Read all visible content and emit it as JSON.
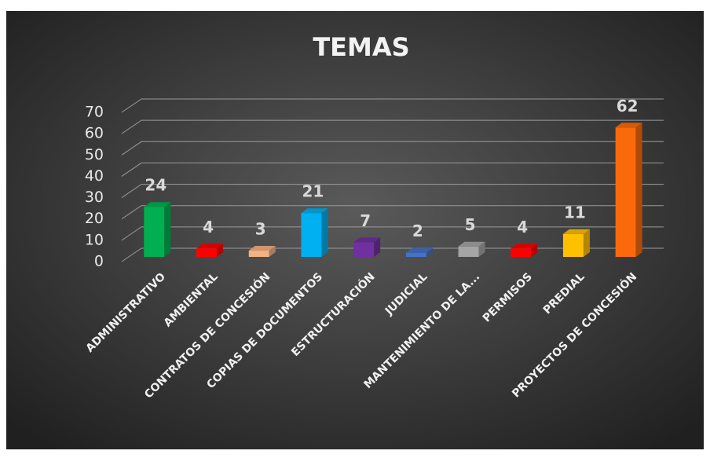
{
  "chart_data": {
    "type": "bar3d",
    "title": "TEMAS",
    "categories": [
      "ADMINISTRATIVO",
      "AMBIENTAL",
      "CONTRATOS DE CONCESIÓN",
      "COPIAS DE DOCUMENTOS",
      "ESTRUCTURACIÓN",
      "JUDICIAL",
      "MANTENIMIENTO DE LA...",
      "PERMISOS",
      "PREDIAL",
      "PROYECTOS DE CONCESIÓN"
    ],
    "values": [
      24,
      4,
      3,
      21,
      7,
      2,
      5,
      4,
      11,
      62
    ],
    "colors": [
      "#00b050",
      "#ff0000",
      "#f4b183",
      "#00b0f0",
      "#7030a0",
      "#4472c4",
      "#a5a5a5",
      "#ff0000",
      "#ffc000",
      "#fa6a0a"
    ],
    "ylim": [
      0,
      70
    ],
    "yticks": [
      0,
      10,
      20,
      30,
      40,
      50,
      60,
      70
    ],
    "grid": true
  }
}
